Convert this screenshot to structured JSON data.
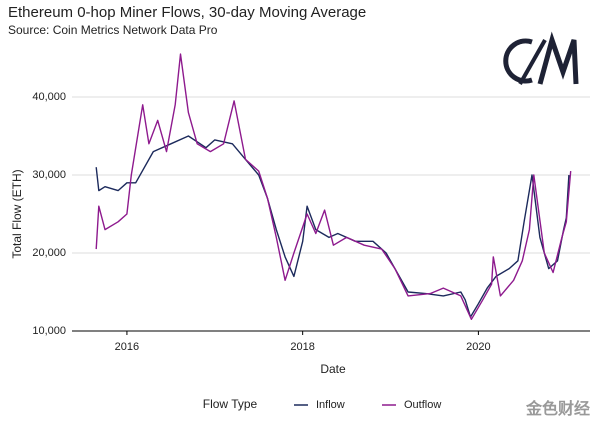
{
  "chart_data": {
    "type": "line",
    "title": "Ethereum 0-hop Miner Flows, 30-day Moving Average",
    "subtitle": "Source: Coin Metrics Network Data Pro",
    "x_label": "Date",
    "y_label": "Total Flow (ETH)",
    "legend_title": "Flow Type",
    "watermark": "金色财经",
    "xlim": [
      2015.375,
      2021.27
    ],
    "xticks": [
      2016,
      2018,
      2020
    ],
    "ylim": [
      10000,
      46000
    ],
    "yticks": [
      {
        "value": 10000,
        "label": "10,000"
      },
      {
        "value": 20000,
        "label": "20,000"
      },
      {
        "value": 30000,
        "label": "30,000"
      },
      {
        "value": 40000,
        "label": "40,000"
      }
    ],
    "grid": true,
    "series": [
      {
        "name": "Inflow",
        "color": "#1c2a5c",
        "x": [
          2015.65,
          2015.68,
          2015.75,
          2015.9,
          2016.0,
          2016.1,
          2016.3,
          2016.5,
          2016.7,
          2016.9,
          2017.0,
          2017.2,
          2017.35,
          2017.5,
          2017.6,
          2017.7,
          2017.8,
          2017.9,
          2018.0,
          2018.05,
          2018.15,
          2018.3,
          2018.4,
          2018.6,
          2018.8,
          2018.95,
          2019.1,
          2019.2,
          2019.4,
          2019.6,
          2019.8,
          2019.85,
          2019.91,
          2020.0,
          2020.1,
          2020.2,
          2020.35,
          2020.45,
          2020.52,
          2020.61,
          2020.7,
          2020.8,
          2020.9,
          2020.97,
          2021.0,
          2021.03
        ],
        "values": [
          31000,
          28000,
          28500,
          28000,
          29000,
          29000,
          33000,
          34000,
          35000,
          33500,
          34500,
          34000,
          32000,
          30000,
          27000,
          23000,
          19500,
          17000,
          21500,
          26000,
          23000,
          22000,
          22500,
          21500,
          21500,
          20000,
          17000,
          15000,
          14800,
          14500,
          15000,
          14000,
          11800,
          13500,
          15500,
          17000,
          18000,
          19000,
          24000,
          30000,
          22000,
          18000,
          19000,
          23000,
          24500,
          30000
        ]
      },
      {
        "name": "Outflow",
        "color": "#8e1a8e",
        "x": [
          2015.65,
          2015.68,
          2015.75,
          2015.9,
          2016.0,
          2016.05,
          2016.18,
          2016.25,
          2016.35,
          2016.45,
          2016.55,
          2016.61,
          2016.7,
          2016.8,
          2016.95,
          2017.1,
          2017.22,
          2017.35,
          2017.5,
          2017.6,
          2017.7,
          2017.8,
          2017.9,
          2018.05,
          2018.15,
          2018.25,
          2018.35,
          2018.5,
          2018.7,
          2018.9,
          2019.05,
          2019.2,
          2019.45,
          2019.6,
          2019.8,
          2019.92,
          2020.05,
          2020.15,
          2020.17,
          2020.25,
          2020.4,
          2020.5,
          2020.58,
          2020.63,
          2020.75,
          2020.85,
          2020.95,
          2021.0,
          2021.05
        ],
        "values": [
          20500,
          26000,
          23000,
          24000,
          25000,
          30000,
          39000,
          34000,
          37000,
          33000,
          39000,
          45500,
          38000,
          34000,
          33000,
          34000,
          39500,
          32000,
          30500,
          27000,
          22000,
          16500,
          20000,
          25000,
          22500,
          25500,
          21000,
          22000,
          21000,
          20500,
          18000,
          14500,
          14800,
          15500,
          14500,
          11500,
          14000,
          16000,
          19500,
          14500,
          16500,
          19000,
          23000,
          30000,
          20000,
          17500,
          22000,
          24000,
          30500
        ]
      }
    ]
  }
}
